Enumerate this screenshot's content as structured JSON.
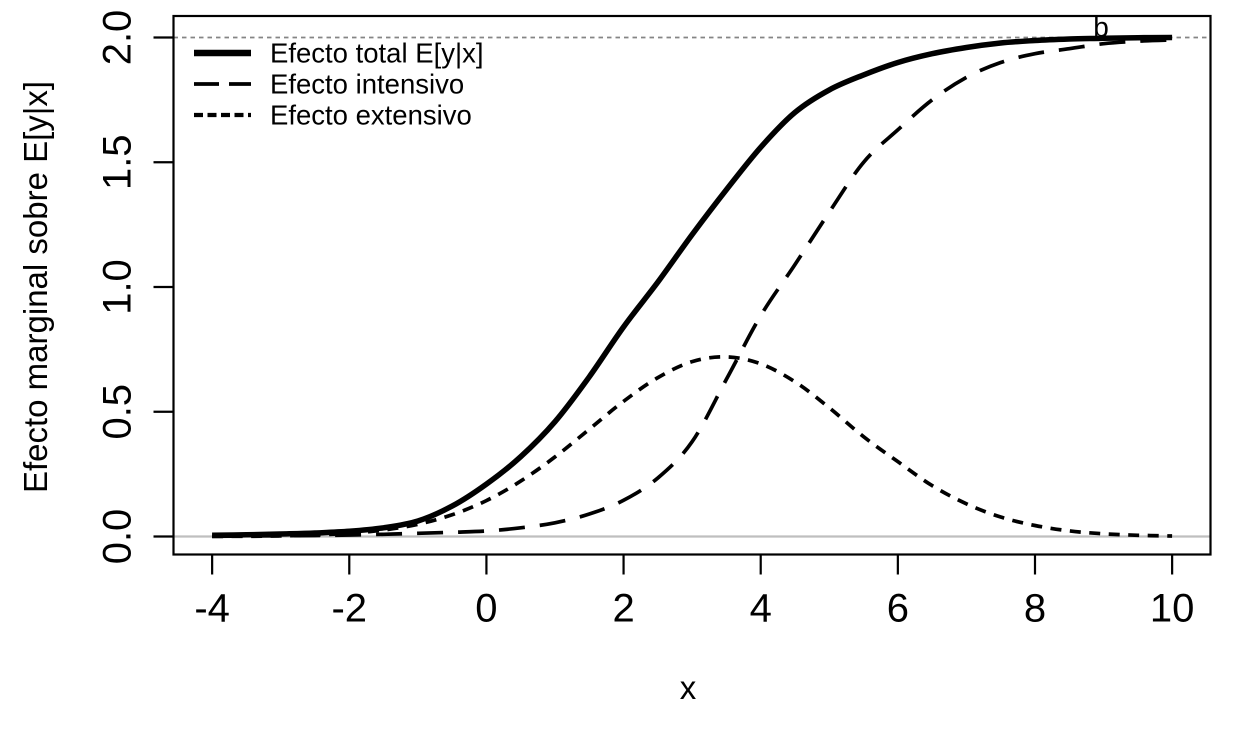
{
  "chart_data": {
    "type": "line",
    "title": "",
    "xlabel": "x",
    "ylabel": "Efecto marginal sobre E[y|x]",
    "x_axis": {
      "ticks": [
        -4,
        -2,
        0,
        2,
        4,
        6,
        8,
        10
      ],
      "labels": [
        "-4",
        "-2",
        "0",
        "2",
        "4",
        "6",
        "8",
        "10"
      ],
      "range": [
        -4.56,
        10.56
      ]
    },
    "y_axis": {
      "ticks": [
        0,
        0.5,
        1,
        1.5,
        2
      ],
      "labels": [
        "0.0",
        "0.5",
        "1.0",
        "1.5",
        "2.0"
      ],
      "range": [
        -0.08,
        2.08
      ]
    },
    "grid": false,
    "x": [
      -4,
      -3.5,
      -3,
      -2.5,
      -2,
      -1.5,
      -1,
      -0.5,
      0,
      0.5,
      1,
      1.5,
      2,
      2.5,
      3,
      3.5,
      4,
      4.5,
      5,
      5.5,
      6,
      6.5,
      7,
      7.5,
      8,
      8.5,
      9,
      9.5,
      10
    ],
    "series": [
      {
        "id": "total",
        "label": "Efecto total E[y|x]",
        "style": "solid",
        "values": [
          0.005,
          0.007,
          0.01,
          0.014,
          0.021,
          0.035,
          0.062,
          0.122,
          0.21,
          0.32,
          0.46,
          0.64,
          0.84,
          1.02,
          1.21,
          1.39,
          1.56,
          1.7,
          1.79,
          1.85,
          1.9,
          1.935,
          1.96,
          1.978,
          1.988,
          1.994,
          1.997,
          1.999,
          2.0
        ]
      },
      {
        "id": "intensivo",
        "label": "Efecto intensivo",
        "style": "dashed",
        "values": [
          0.001,
          0.002,
          0.003,
          0.004,
          0.006,
          0.009,
          0.013,
          0.017,
          0.022,
          0.035,
          0.055,
          0.09,
          0.145,
          0.235,
          0.38,
          0.63,
          0.885,
          1.09,
          1.3,
          1.5,
          1.63,
          1.75,
          1.84,
          1.9,
          1.935,
          1.955,
          1.975,
          1.985,
          1.99
        ]
      },
      {
        "id": "extensivo",
        "label": "Efecto extensivo",
        "style": "dotted",
        "values": [
          0.0004,
          0.001,
          0.0026,
          0.006,
          0.013,
          0.026,
          0.049,
          0.087,
          0.144,
          0.222,
          0.319,
          0.43,
          0.542,
          0.637,
          0.701,
          0.72,
          0.692,
          0.62,
          0.516,
          0.4,
          0.3,
          0.204,
          0.131,
          0.078,
          0.044,
          0.0225,
          0.011,
          0.005,
          0.002
        ]
      }
    ],
    "reference_lines": [
      {
        "y": 0,
        "style": "solid",
        "color": "#bfbfbf"
      },
      {
        "y": 2,
        "style": "dotted",
        "color": "#858585"
      }
    ],
    "legend": {
      "position": "topleft"
    },
    "annotations": [
      {
        "text": "b",
        "x": 8.85,
        "y": 2.0
      }
    ]
  }
}
